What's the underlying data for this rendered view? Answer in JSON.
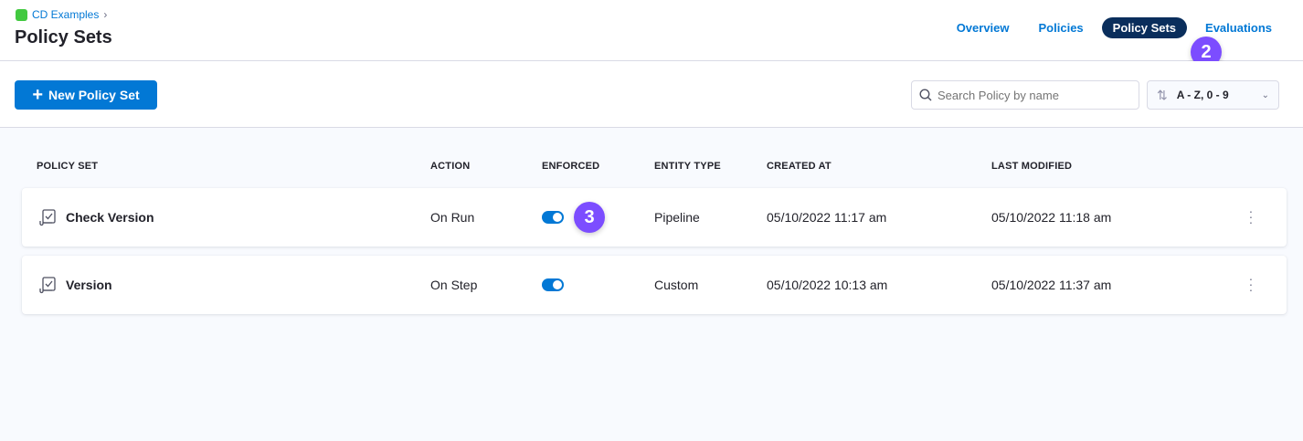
{
  "header": {
    "breadcrumb": "CD Examples",
    "title": "Policy Sets",
    "tabs": [
      {
        "label": "Overview"
      },
      {
        "label": "Policies"
      },
      {
        "label": "Policy Sets",
        "active": true
      },
      {
        "label": "Evaluations"
      }
    ]
  },
  "badges": {
    "tab": "2",
    "toggle": "3"
  },
  "toolbar": {
    "new_label": "New Policy Set",
    "search_placeholder": "Search Policy by name",
    "sort_label": "A - Z, 0 - 9"
  },
  "table": {
    "columns": [
      "POLICY SET",
      "ACTION",
      "ENFORCED",
      "ENTITY TYPE",
      "CREATED AT",
      "LAST MODIFIED"
    ],
    "rows": [
      {
        "name": "Check Version",
        "action": "On Run",
        "enforced": true,
        "entity_type": "Pipeline",
        "created": "05/10/2022 11:17 am",
        "modified": "05/10/2022 11:18 am"
      },
      {
        "name": "Version",
        "action": "On Step",
        "enforced": true,
        "entity_type": "Custom",
        "created": "05/10/2022 10:13 am",
        "modified": "05/10/2022 11:37 am"
      }
    ]
  },
  "colors": {
    "accent": "#0278d5",
    "active_tab": "#0a2e5c",
    "badge": "#7c4dff"
  }
}
